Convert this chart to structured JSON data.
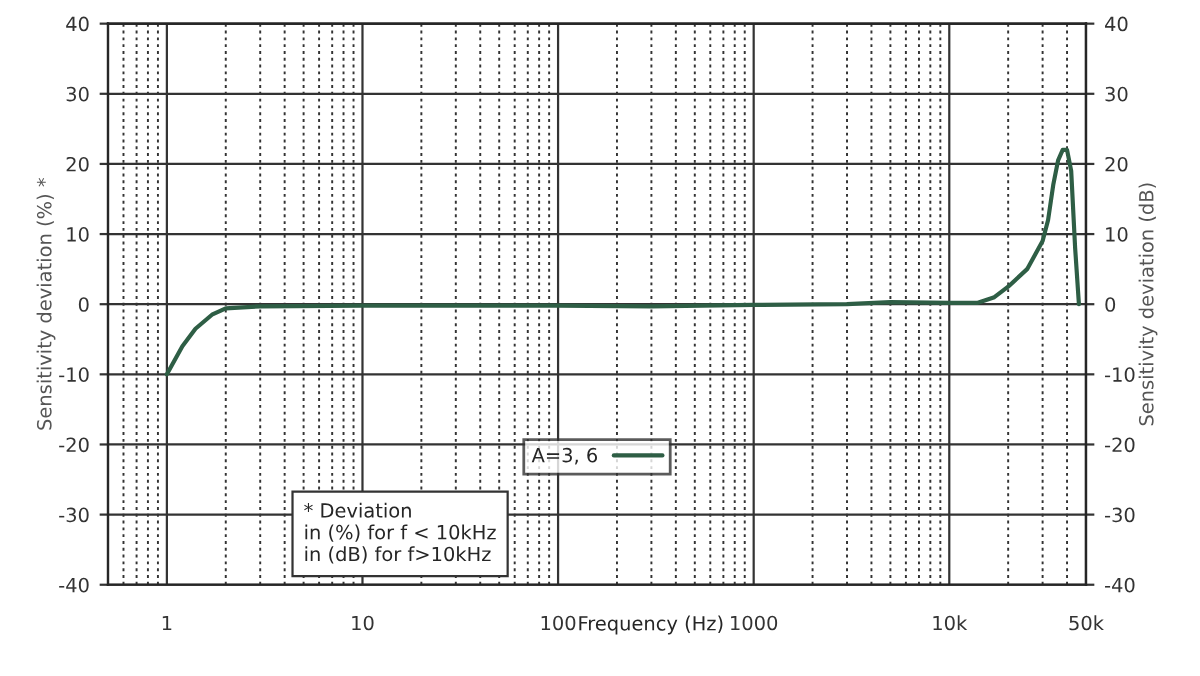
{
  "chart_data": {
    "type": "line",
    "xlabel": "Frequency (Hz)",
    "ylabel": "Sensitivity deviation (%) *",
    "y2label": "Sensitivity deviation (dB)",
    "log": "x",
    "grid": true,
    "legend": "bottom",
    "marker": "none",
    "line_style": "solid",
    "xlim": [
      0.5,
      50000
    ],
    "xticks": [
      1,
      10,
      100,
      1000,
      {
        "value": 10000,
        "label": "10k"
      },
      {
        "value": 50000,
        "label": "50k"
      }
    ],
    "ylim": [
      -40,
      40
    ],
    "yticks": [
      -40,
      -30,
      -20,
      -10,
      0,
      10,
      20,
      30,
      40
    ],
    "y2lim": [
      -40,
      40
    ],
    "y2ticks": [
      -40,
      -30,
      -20,
      -10,
      0,
      10,
      20,
      30,
      40
    ],
    "annotations": [
      "* Deviation\nin (%) for f < 10kHz\nin (dB) for f>10kHz"
    ],
    "series": [
      {
        "name": "A=3, 6",
        "color": "#2e5e45",
        "x": [
          1,
          1.2,
          1.4,
          1.7,
          2,
          3,
          10,
          100,
          300,
          1000,
          3000,
          5000,
          10000,
          14000,
          17000,
          20000,
          25000,
          30000,
          32000,
          34000,
          36000,
          38000,
          40000,
          42000,
          44000,
          46000
        ],
        "values": [
          -10,
          -6,
          -3.5,
          -1.5,
          -0.6,
          -0.3,
          -0.2,
          -0.2,
          -0.3,
          -0.1,
          0,
          0.3,
          0.2,
          0.2,
          1,
          2.5,
          5,
          9,
          12,
          17,
          20.5,
          22,
          22,
          19,
          8,
          0
        ]
      }
    ]
  }
}
